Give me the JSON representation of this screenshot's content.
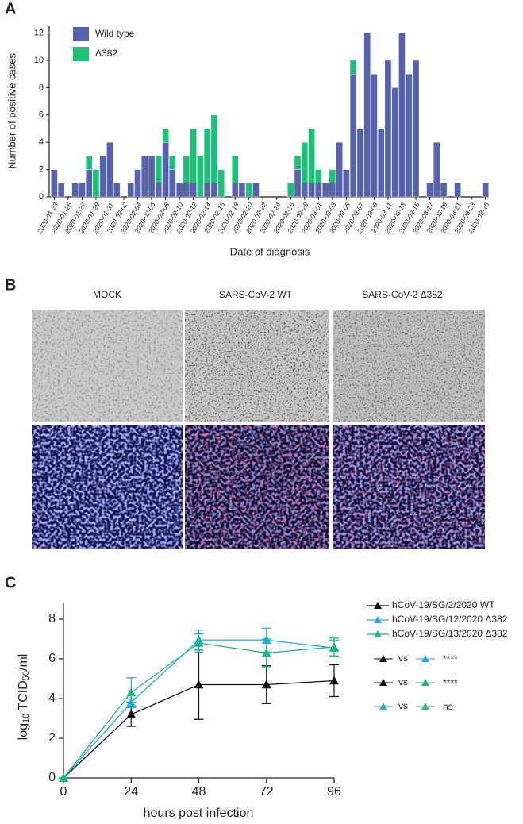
{
  "panel_labels": [
    "A",
    "B",
    "C"
  ],
  "images": {
    "columns": [
      "MOCK",
      "SARS-CoV-2 WT",
      "SARS-CoV-2 Δ382"
    ]
  },
  "chart_data": [
    {
      "type": "stacked_bar",
      "y_label": "Number of positive cases",
      "x_label": "Date of diagnosis",
      "categories": [
        "2020-01-23",
        null,
        "2020-01-25",
        null,
        "2020-01-27",
        null,
        "2020-01-29",
        null,
        "2020-01-31",
        null,
        "2020-02-02",
        null,
        "2020-02-04",
        null,
        "2020-02-06",
        null,
        "2020-02-08",
        null,
        "2020-02-10",
        null,
        "2020-02-12",
        null,
        "2020-02-14",
        null,
        "2020-02-16",
        null,
        "2020-02-18",
        null,
        "2020-02-20",
        null,
        "2020-02-22",
        null,
        "2020-02-24",
        null,
        "2020-02-26",
        null,
        "2020-02-28",
        null,
        "2020-03-01",
        null,
        "2020-03-03",
        null,
        "2020-03-05",
        null,
        "2020-03-07",
        null,
        "2020-03-09",
        null,
        "2020-03-11",
        null,
        "2020-03-13",
        null,
        "2020-03-15",
        null,
        "2020-03-17",
        null,
        "2020-03-19",
        null,
        "2020-03-21",
        null,
        "2020-03-23",
        null,
        "2020-03-25"
      ],
      "series": [
        {
          "name": "Wild type",
          "color": "#5662ad",
          "values": [
            2,
            1,
            0,
            1,
            1,
            2,
            0,
            3,
            4,
            1,
            0,
            1,
            2,
            3,
            3,
            1,
            4,
            2,
            1,
            1,
            1,
            0,
            1,
            1,
            0,
            0,
            1,
            1,
            0,
            1,
            0,
            0,
            0,
            0,
            0,
            2,
            1,
            1,
            1,
            1,
            1,
            4,
            2,
            9,
            5,
            12,
            9,
            5,
            10,
            8,
            12,
            9,
            10,
            0,
            1,
            4,
            1,
            0,
            1,
            0,
            0,
            0,
            1
          ]
        },
        {
          "name": "Δ382",
          "color": "#1fbf7a",
          "values": [
            0,
            0,
            0,
            0,
            0,
            1,
            2,
            0,
            0,
            0,
            0,
            0,
            0,
            0,
            0,
            2,
            1,
            1,
            0,
            2,
            4,
            3,
            4,
            5,
            2,
            0,
            2,
            0,
            1,
            0,
            0,
            0,
            0,
            0,
            1,
            1,
            3,
            4,
            1,
            0,
            1,
            0,
            0,
            1,
            0,
            0,
            0,
            0,
            0,
            0,
            0,
            0,
            0,
            0,
            0,
            0,
            0,
            0,
            0,
            0,
            0,
            0,
            0
          ]
        }
      ],
      "ylim": [
        0,
        12.5
      ],
      "yticks": [
        0,
        2,
        4,
        6,
        8,
        10,
        12
      ],
      "legend": "upper left"
    },
    {
      "type": "line_errorbar",
      "x_label": "hours post infection",
      "y_label": [
        "log",
        "10",
        " TCID",
        "50",
        "/ml"
      ],
      "x": [
        0,
        24,
        48,
        72,
        96
      ],
      "series": [
        {
          "name": "hCoV-19/SG/2/2020 WT",
          "color": "#111111",
          "values": [
            0,
            3.2,
            4.7,
            4.7,
            4.9
          ],
          "errors": [
            0,
            0.6,
            1.75,
            0.95,
            0.8
          ]
        },
        {
          "name": "hCoV-19/SG/12/2020 Δ382",
          "color": "#29abe2",
          "values": [
            0,
            3.8,
            6.95,
            6.95,
            6.55
          ],
          "errors": [
            0,
            0.2,
            0.5,
            0.6,
            0.4
          ]
        },
        {
          "name": "hCoV-19/SG/13/2020 Δ382",
          "color": "#20b585",
          "values": [
            0,
            4.3,
            6.8,
            6.3,
            6.6
          ],
          "errors": [
            0,
            0.75,
            0.45,
            0.7,
            0.45
          ]
        }
      ],
      "comparisons": [
        {
          "label": "vs",
          "result": "****"
        },
        {
          "label": "vs",
          "result": "****"
        },
        {
          "label": "vs",
          "result": "ns"
        }
      ],
      "xlim": [
        0,
        96
      ],
      "xticks": [
        0,
        24,
        48,
        72,
        96
      ],
      "ylim": [
        0,
        8.8
      ],
      "yticks": [
        0,
        2,
        4,
        6,
        8
      ],
      "legend": "right"
    }
  ]
}
